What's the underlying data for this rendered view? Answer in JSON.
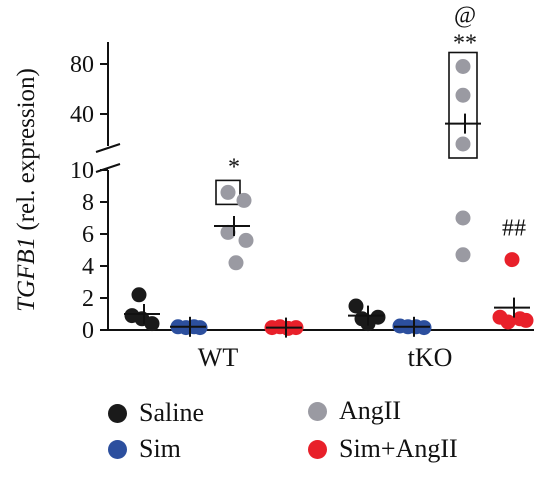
{
  "chart_data": {
    "type": "scatter",
    "ylabel": {
      "italic": "TGFB1",
      "rest": " (rel. expression)"
    },
    "y_ticks_lower": [
      "0",
      "2",
      "4",
      "6",
      "8",
      "10"
    ],
    "y_ticks_upper": [
      "40",
      "80"
    ],
    "ylim_lower": [
      0,
      10
    ],
    "ylim_upper": [
      10,
      95
    ],
    "categories": [
      "WT",
      "tKO"
    ],
    "series": [
      {
        "name": "Saline",
        "color": "#1a1a1a",
        "groups": [
          {
            "category": "WT",
            "values": [
              2.2,
              0.9,
              0.7,
              0.4
            ],
            "mean": 1.0
          },
          {
            "category": "tKO",
            "values": [
              1.5,
              0.8,
              0.7,
              0.4
            ],
            "mean": 0.9
          }
        ]
      },
      {
        "name": "AngII",
        "color": "#9a9aa2",
        "groups": [
          {
            "category": "WT",
            "values": [
              8.6,
              8.1,
              6.1,
              5.6,
              4.2
            ],
            "mean": 6.5,
            "boxed_value": 8.6,
            "annotation": "*"
          },
          {
            "category": "tKO",
            "values": [
              78,
              55,
              15,
              7.0,
              4.7
            ],
            "mean": 32,
            "boxed_values": [
              78,
              55,
              15
            ],
            "annotation_top": "@",
            "annotation": "**"
          }
        ]
      },
      {
        "name": "Sim",
        "color": "#2c4f9e",
        "groups": [
          {
            "category": "WT",
            "values": [
              0.2,
              0.15,
              0.2,
              0.15
            ],
            "mean": 0.2
          },
          {
            "category": "tKO",
            "values": [
              0.25,
              0.2,
              0.2,
              0.15
            ],
            "mean": 0.2
          }
        ]
      },
      {
        "name": "Sim+AngII",
        "color": "#e8202a",
        "groups": [
          {
            "category": "WT",
            "values": [
              0.15,
              0.2,
              0.1,
              0.15
            ],
            "mean": 0.15
          },
          {
            "category": "tKO",
            "values": [
              4.4,
              0.8,
              0.7,
              0.6,
              0.5
            ],
            "mean": 1.4,
            "annotation": "##"
          }
        ]
      }
    ],
    "legend": [
      {
        "label": "Saline",
        "color": "#1a1a1a"
      },
      {
        "label": "AngII",
        "color": "#9a9aa2"
      },
      {
        "label": "Sim",
        "color": "#2c4f9e"
      },
      {
        "label": "Sim+AngII",
        "color": "#e8202a"
      }
    ],
    "legend_position": "bottom",
    "grid": false
  }
}
